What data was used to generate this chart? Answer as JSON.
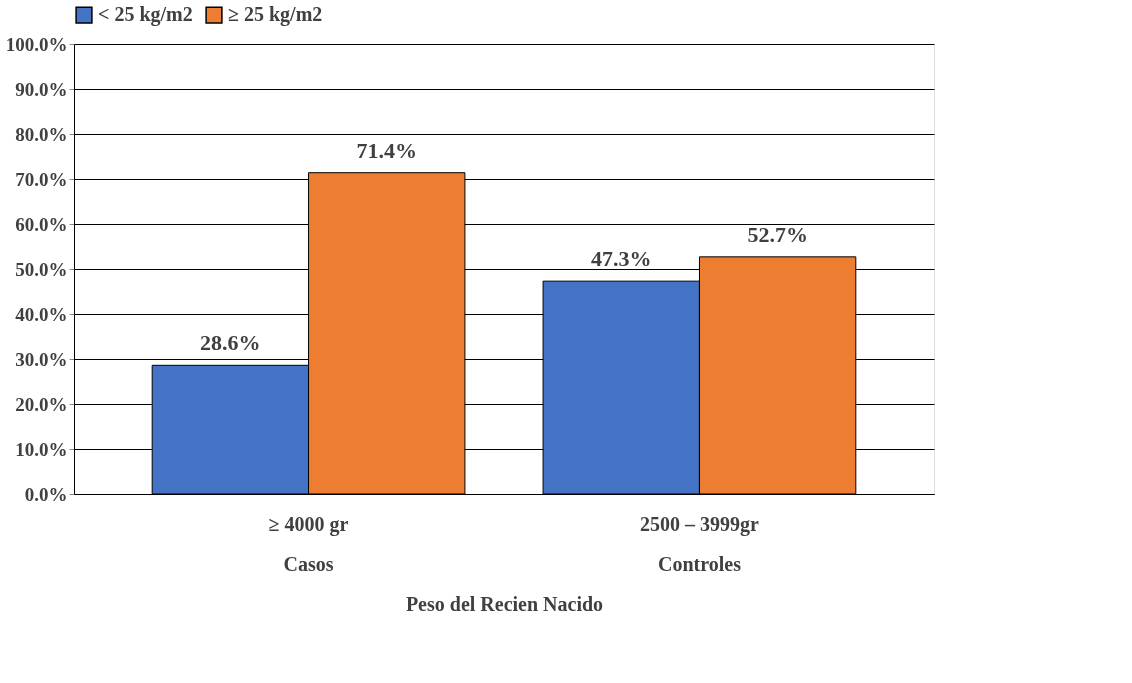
{
  "chart_data": {
    "type": "bar",
    "xlabel": "Peso del Recien Nacido",
    "categories": [
      "≥ 4000 gr\nCasos",
      "2500 – 3999gr\nControles"
    ],
    "series": [
      {
        "name": "< 25 kg/m2",
        "color": "#4472c4",
        "values": [
          28.6,
          47.3
        ],
        "value_labels": [
          "28.6%",
          "47.3%"
        ]
      },
      {
        "name": "≥ 25 kg/m2",
        "color": "#ed7d31",
        "values": [
          71.4,
          52.7
        ],
        "value_labels": [
          "71.4%",
          "52.7%"
        ]
      }
    ],
    "ylim": [
      0,
      100
    ],
    "yticks": [
      {
        "value": 0,
        "label": "0.0%"
      },
      {
        "value": 10,
        "label": "10.0%"
      },
      {
        "value": 20,
        "label": "20.0%"
      },
      {
        "value": 30,
        "label": "30.0%"
      },
      {
        "value": 40,
        "label": "40.0%"
      },
      {
        "value": 50,
        "label": "50.0%"
      },
      {
        "value": 60,
        "label": "60.0%"
      },
      {
        "value": 70,
        "label": "70.0%"
      },
      {
        "value": 80,
        "label": "80.0%"
      },
      {
        "value": 90,
        "label": "90.0%"
      },
      {
        "value": 100,
        "label": "100.0%"
      }
    ],
    "grid": "y",
    "legend": "top"
  }
}
